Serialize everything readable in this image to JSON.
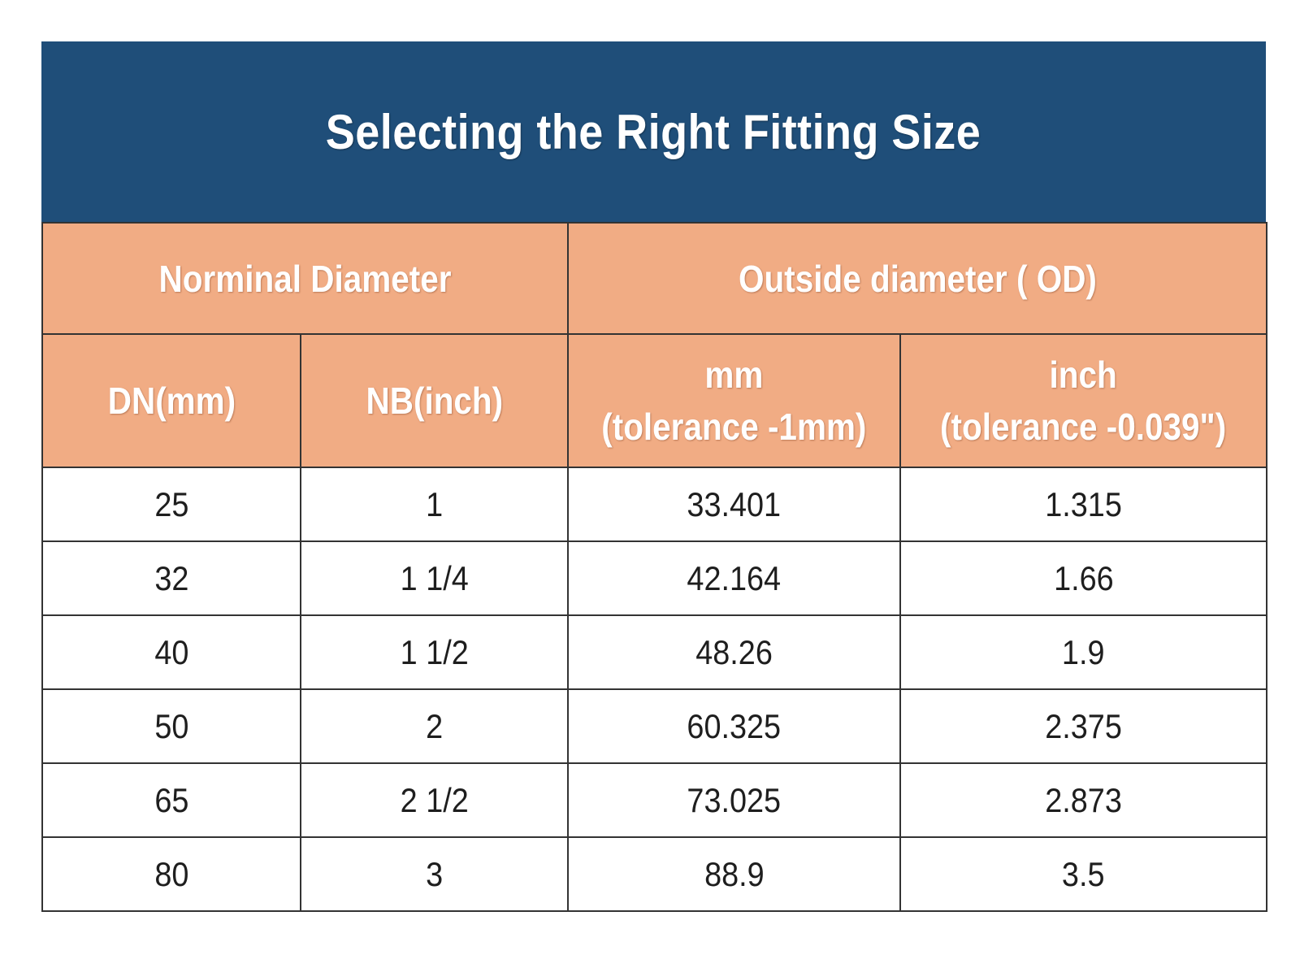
{
  "title": "Selecting the Right Fitting Size",
  "header_groups": [
    {
      "label": "Norminal Diameter",
      "colspan": 2
    },
    {
      "label": "Outside  diameter ( OD)",
      "colspan": 2
    }
  ],
  "columns": [
    {
      "line1": "DN(mm)",
      "line2": ""
    },
    {
      "line1": "NB(inch)",
      "line2": ""
    },
    {
      "line1": "mm",
      "line2": "(tolerance -1mm)"
    },
    {
      "line1": "inch",
      "line2": "(tolerance -0.039\")"
    }
  ],
  "rows": [
    [
      "25",
      "1",
      "33.401",
      "1.315"
    ],
    [
      "32",
      "1 1/4",
      "42.164",
      "1.66"
    ],
    [
      "40",
      "1 1/2",
      "48.26",
      "1.9"
    ],
    [
      "50",
      "2",
      "60.325",
      "2.375"
    ],
    [
      "65",
      "2 1/2",
      "73.025",
      "2.873"
    ],
    [
      "80",
      "3",
      "88.9",
      "3.5"
    ]
  ],
  "colors": {
    "title_background": "#1f4e79",
    "header_background": "#f1ac84",
    "header_text": "#ffffff",
    "grid": "#333333"
  }
}
